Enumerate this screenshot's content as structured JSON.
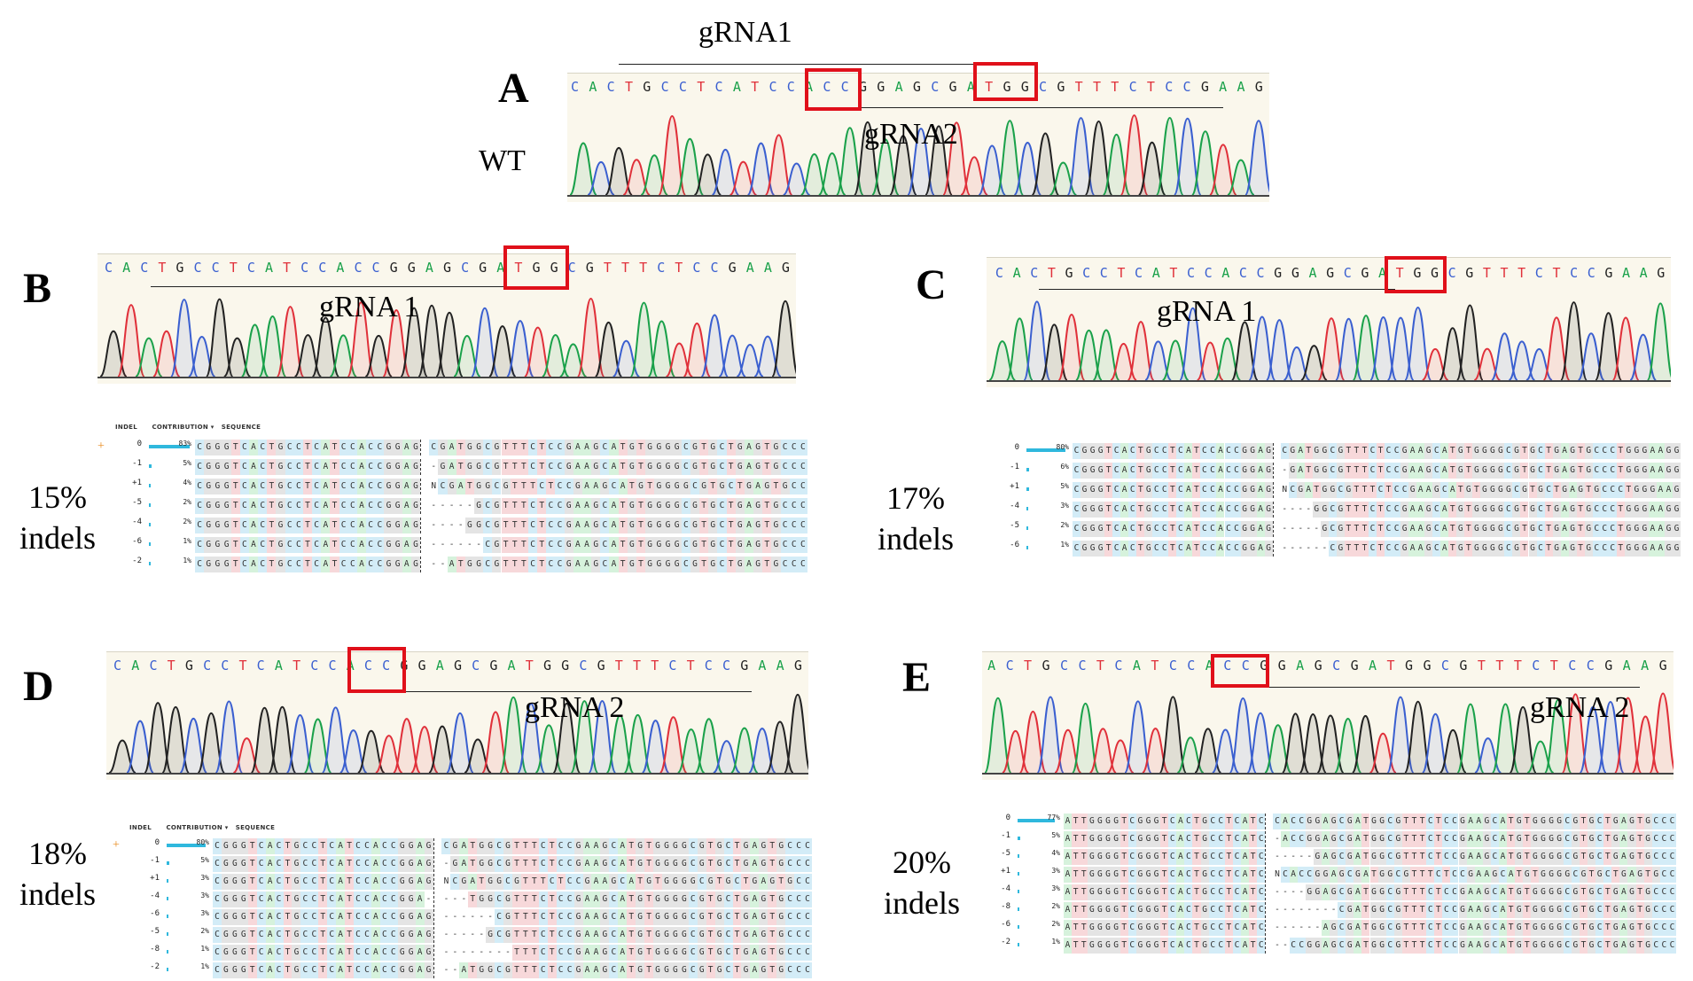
{
  "panels": {
    "A": {
      "letter": "A",
      "side_label": "WT",
      "guide_top": "gRNA1",
      "guide_mid": "gRNA2",
      "sequence": "CACTGCCTCATCCACCGGAGCGATGGCGTTTCTCCGAAG"
    },
    "B": {
      "letter": "B",
      "guide": "gRNA 1",
      "sequence": "CACTGCCTCATCCACCGGAGCGATGGCGTTTCTCCGAAG",
      "indel_pct": "15%",
      "indel_word": "indels",
      "rows": [
        {
          "indel": "0",
          "pct": "83%",
          "left": "CGGGTCACTGCCTCATCCACCGGAG",
          "right": "CGATGGCGTTTCTCCGAAGCATGTGGGGCGTGCTGAGTGCCC"
        },
        {
          "indel": "-1",
          "pct": "5%",
          "left": "CGGGTCACTGCCTCATCCACCGGAG",
          "right": "-GATGGCGTTTCTCCGAAGCATGTGGGGCGTGCTGAGTGCCC"
        },
        {
          "indel": "+1",
          "pct": "4%",
          "left": "CGGGTCACTGCCTCATCCACCGGAG",
          "right": "NCGATGGCGTTTCTCCGAAGCATGTGGGGCGTGCTGAGTGCC"
        },
        {
          "indel": "-5",
          "pct": "2%",
          "left": "CGGGTCACTGCCTCATCCACCGGAG",
          "right": "-----GCGTTTCTCCGAAGCATGTGGGGCGTGCTGAGTGCCC"
        },
        {
          "indel": "-4",
          "pct": "2%",
          "left": "CGGGTCACTGCCTCATCCACCGGAG",
          "right": "----GGCGTTTCTCCGAAGCATGTGGGGCGTGCTGAGTGCCC"
        },
        {
          "indel": "-6",
          "pct": "1%",
          "left": "CGGGTCACTGCCTCATCCACCGGAG",
          "right": "------CGTTTCTCCGAAGCATGTGGGGCGTGCTGAGTGCCC"
        },
        {
          "indel": "-2",
          "pct": "1%",
          "left": "CGGGTCACTGCCTCATCCACCGGAG",
          "right": "--ATGGCGTTTCTCCGAAGCATGTGGGGCGTGCTGAGTGCCC"
        }
      ]
    },
    "C": {
      "letter": "C",
      "guide": "gRNA 1",
      "sequence": "CACTGCCTCATCCACCGGAGCGATGGCGTTTCTCCGAAG",
      "indel_pct": "17%",
      "indel_word": "indels",
      "rows": [
        {
          "indel": "0",
          "pct": "80%",
          "left": "CGGGTCACTGCCTCATCCACCGGAG",
          "right": "CGATGGCGTTTCTCCGAAGCATGTGGGGCGTGCTGAGTGCCCTGGGAAGG"
        },
        {
          "indel": "-1",
          "pct": "6%",
          "left": "CGGGTCACTGCCTCATCCACCGGAG",
          "right": "-GATGGCGTTTCTCCGAAGCATGTGGGGCGTGCTGAGTGCCCTGGGAAGG"
        },
        {
          "indel": "+1",
          "pct": "5%",
          "left": "CGGGTCACTGCCTCATCCACCGGAG",
          "right": "NCGATGGCGTTTCTCCGAAGCATGTGGGGCGTGCTGAGTGCCCTGGGAAG"
        },
        {
          "indel": "-4",
          "pct": "3%",
          "left": "CGGGTCACTGCCTCATCCACCGGAG",
          "right": "----GGCGTTTCTCCGAAGCATGTGGGGCGTGCTGAGTGCCCTGGGAAGG"
        },
        {
          "indel": "-5",
          "pct": "2%",
          "left": "CGGGTCACTGCCTCATCCACCGGAG",
          "right": "-----GCGTTTCTCCGAAGCATGTGGGGCGTGCTGAGTGCCCTGGGAAGG"
        },
        {
          "indel": "-6",
          "pct": "1%",
          "left": "CGGGTCACTGCCTCATCCACCGGAG",
          "right": "------CGTTTCTCCGAAGCATGTGGGGCGTGCTGAGTGCCCTGGGAAGG"
        }
      ]
    },
    "D": {
      "letter": "D",
      "guide": "gRNA 2",
      "sequence": "CACTGCCTCATCCACCGGAGCGATGGCGTTTCTCCGAAG",
      "indel_pct": "18%",
      "indel_word": "indels",
      "rows": [
        {
          "indel": "0",
          "pct": "80%",
          "left": "CGGGTCACTGCCTCATCCACCGGAG",
          "right": "CGATGGCGTTTCTCCGAAGCATGTGGGGCGTGCTGAGTGCCC"
        },
        {
          "indel": "-1",
          "pct": "5%",
          "left": "CGGGTCACTGCCTCATCCACCGGAG",
          "right": "-GATGGCGTTTCTCCGAAGCATGTGGGGCGTGCTGAGTGCCC"
        },
        {
          "indel": "+1",
          "pct": "3%",
          "left": "CGGGTCACTGCCTCATCCACCGGAG",
          "right": "NCGATGGCGTTTCTCCGAAGCATGTGGGGCGTGCTGAGTGCC"
        },
        {
          "indel": "-4",
          "pct": "3%",
          "left": "CGGGTCACTGCCTCATCCACCGGA-",
          "right": "---TGGCGTTTCTCCGAAGCATGTGGGGCGTGCTGAGTGCCC"
        },
        {
          "indel": "-6",
          "pct": "3%",
          "left": "CGGGTCACTGCCTCATCCACCGGAG",
          "right": "------CGTTTCTCCGAAGCATGTGGGGCGTGCTGAGTGCCC"
        },
        {
          "indel": "-5",
          "pct": "2%",
          "left": "CGGGTCACTGCCTCATCCACCGGAG",
          "right": "-----GCGTTTCTCCGAAGCATGTGGGGCGTGCTGAGTGCCC"
        },
        {
          "indel": "-8",
          "pct": "1%",
          "left": "CGGGTCACTGCCTCATCCACCGGAG",
          "right": "--------TTTCTCCGAAGCATGTGGGGCGTGCTGAGTGCCC"
        },
        {
          "indel": "-2",
          "pct": "1%",
          "left": "CGGGTCACTGCCTCATCCACCGGAG",
          "right": "--ATGGCGTTTCTCCGAAGCATGTGGGGCGTGCTGAGTGCCC"
        }
      ]
    },
    "E": {
      "letter": "E",
      "guide": "gRNA 2",
      "sequence": "ACTGCCTCATCCACCGGAGCGATGGCGTTTCTCCGAAG",
      "indel_pct": "20%",
      "indel_word": "indels",
      "rows": [
        {
          "indel": "0",
          "pct": "77%",
          "left": "ATTGGGGTCGGGTCACTGCCTCATC",
          "right": "CACCGGAGCGATGGCGTTTCTCCGAAGCATGTGGGGCGTGCTGAGTGCCC"
        },
        {
          "indel": "-1",
          "pct": "5%",
          "left": "ATTGGGGTCGGGTCACTGCCTCATC",
          "right": "-ACCGGAGCGATGGCGTTTCTCCGAAGCATGTGGGGCGTGCTGAGTGCCC"
        },
        {
          "indel": "-5",
          "pct": "4%",
          "left": "ATTGGGGTCGGGTCACTGCCTCATC",
          "right": "-----GAGCGATGGCGTTTCTCCGAAGCATGTGGGGCGTGCTGAGTGCCC"
        },
        {
          "indel": "+1",
          "pct": "3%",
          "left": "ATTGGGGTCGGGTCACTGCCTCATC",
          "right": "NCACCGGAGCGATGGCGTTTCTCCGAAGCATGTGGGGCGTGCTGAGTGCC"
        },
        {
          "indel": "-4",
          "pct": "3%",
          "left": "ATTGGGGTCGGGTCACTGCCTCATC",
          "right": "----GGAGCGATGGCGTTTCTCCGAAGCATGTGGGGCGTGCTGAGTGCCC"
        },
        {
          "indel": "-8",
          "pct": "2%",
          "left": "ATTGGGGTCGGGTCACTGCCTCATC",
          "right": "--------CGATGGCGTTTCTCCGAAGCATGTGGGGCGTGCTGAGTGCCC"
        },
        {
          "indel": "-6",
          "pct": "2%",
          "left": "ATTGGGGTCGGGTCACTGCCTCATC",
          "right": "------AGCGATGGCGTTTCTCCGAAGCATGTGGGGCGTGCTGAGTGCCC"
        },
        {
          "indel": "-2",
          "pct": "1%",
          "left": "ATTGGGGTCGGGTCACTGCCTCATC",
          "right": "--CCGGAGCGATGGCGTTTCTCCGAAGCATGTGGGGCGTGCTGAGTGCCC"
        }
      ]
    }
  },
  "ice_header": {
    "indel": "INDEL",
    "contribution": "CONTRIBUTION ▾",
    "sequence": "SEQUENCE"
  },
  "colors": {
    "A": "#1aa14a",
    "C": "#3a5fd0",
    "G": "#222222",
    "T": "#e0303a",
    "highlight_box": "#e0101a",
    "bar": "#2fb8dd"
  }
}
